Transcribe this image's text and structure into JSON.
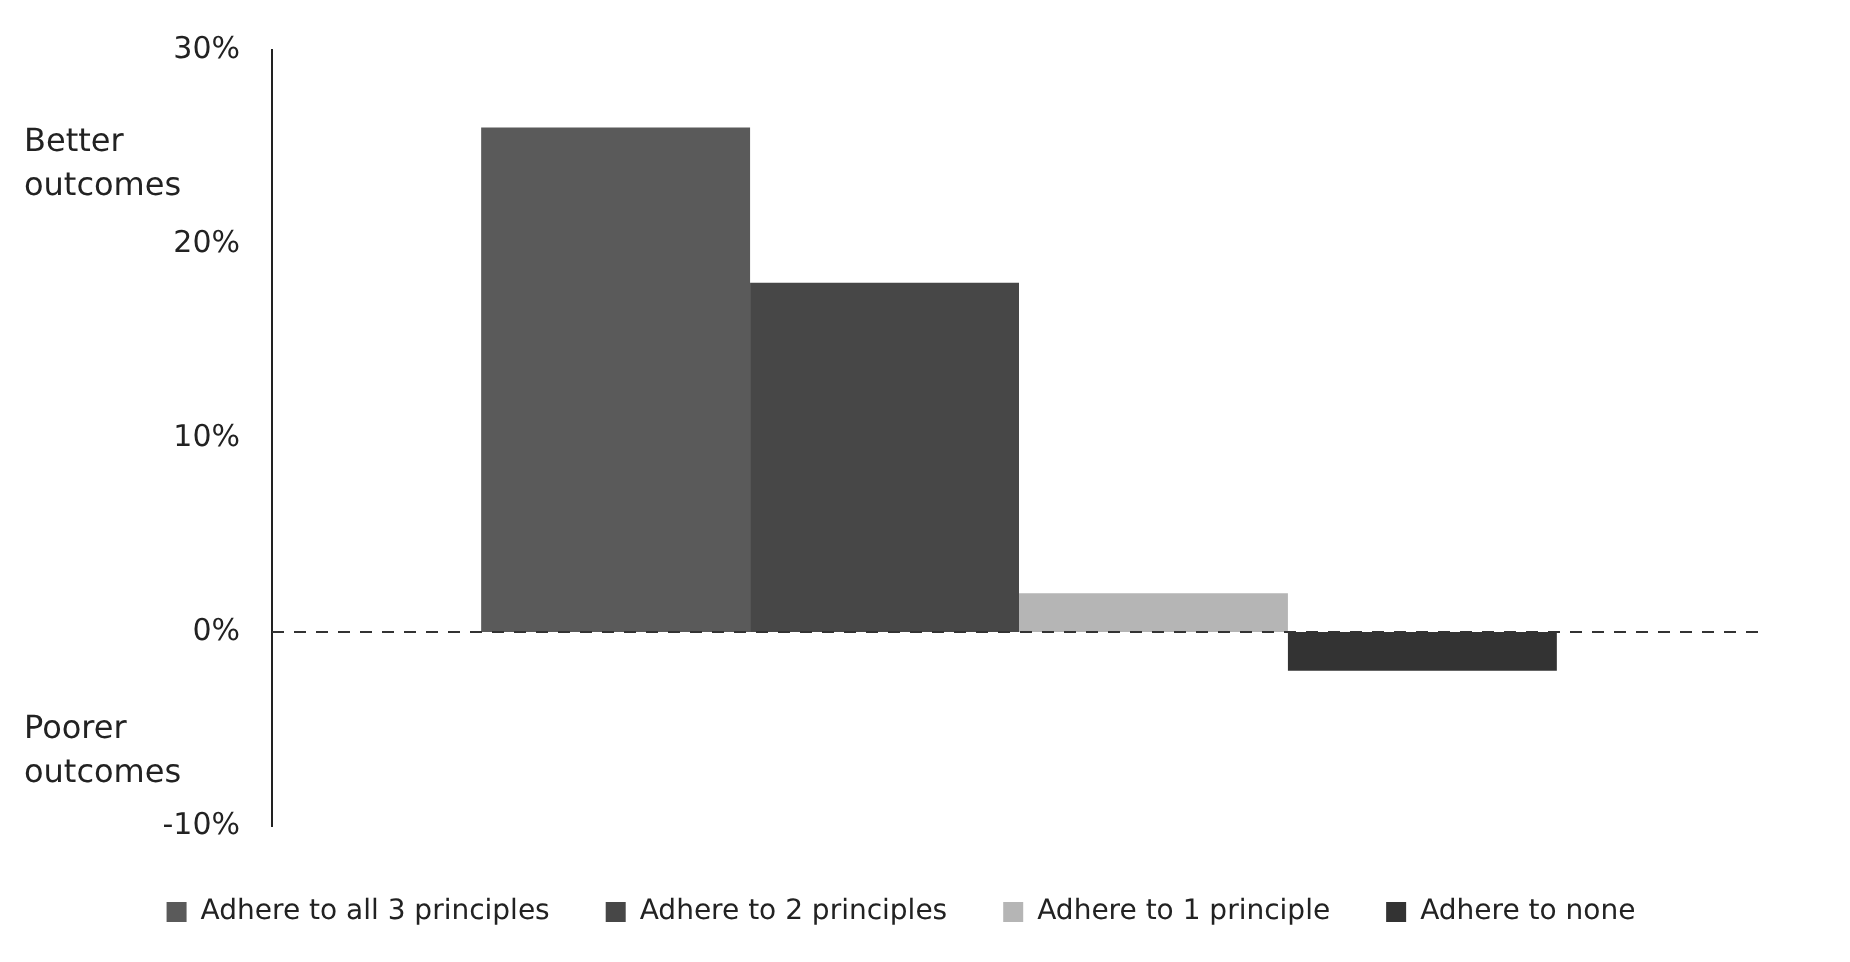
{
  "chart_data": {
    "type": "bar",
    "categories": [
      null
    ],
    "series": [
      {
        "name": "Adhere to all 3 principles",
        "color": "#5a5a5a",
        "values": [
          26
        ]
      },
      {
        "name": "Adhere to 2 principles",
        "color": "#474747",
        "values": [
          18
        ]
      },
      {
        "name": "Adhere to 1 principle",
        "color": "#b5b5b5",
        "values": [
          2
        ]
      },
      {
        "name": "Adhere to none",
        "color": "#333333",
        "values": [
          -2
        ]
      }
    ],
    "ylim": [
      -10,
      30
    ],
    "yticks": [
      {
        "value": -10,
        "label": "-10%"
      },
      {
        "value": 0,
        "label": "0%"
      },
      {
        "value": 10,
        "label": "10%"
      },
      {
        "value": 20,
        "label": "20%"
      },
      {
        "value": 30,
        "label": "30%"
      }
    ],
    "ref_lines": [
      {
        "axis": "y",
        "value": 0,
        "line_style": "dashed",
        "color": "#333333"
      }
    ],
    "annotations": [
      "Better outcomes",
      "Poorer outcomes"
    ],
    "grid": false,
    "legend": "bottom"
  }
}
